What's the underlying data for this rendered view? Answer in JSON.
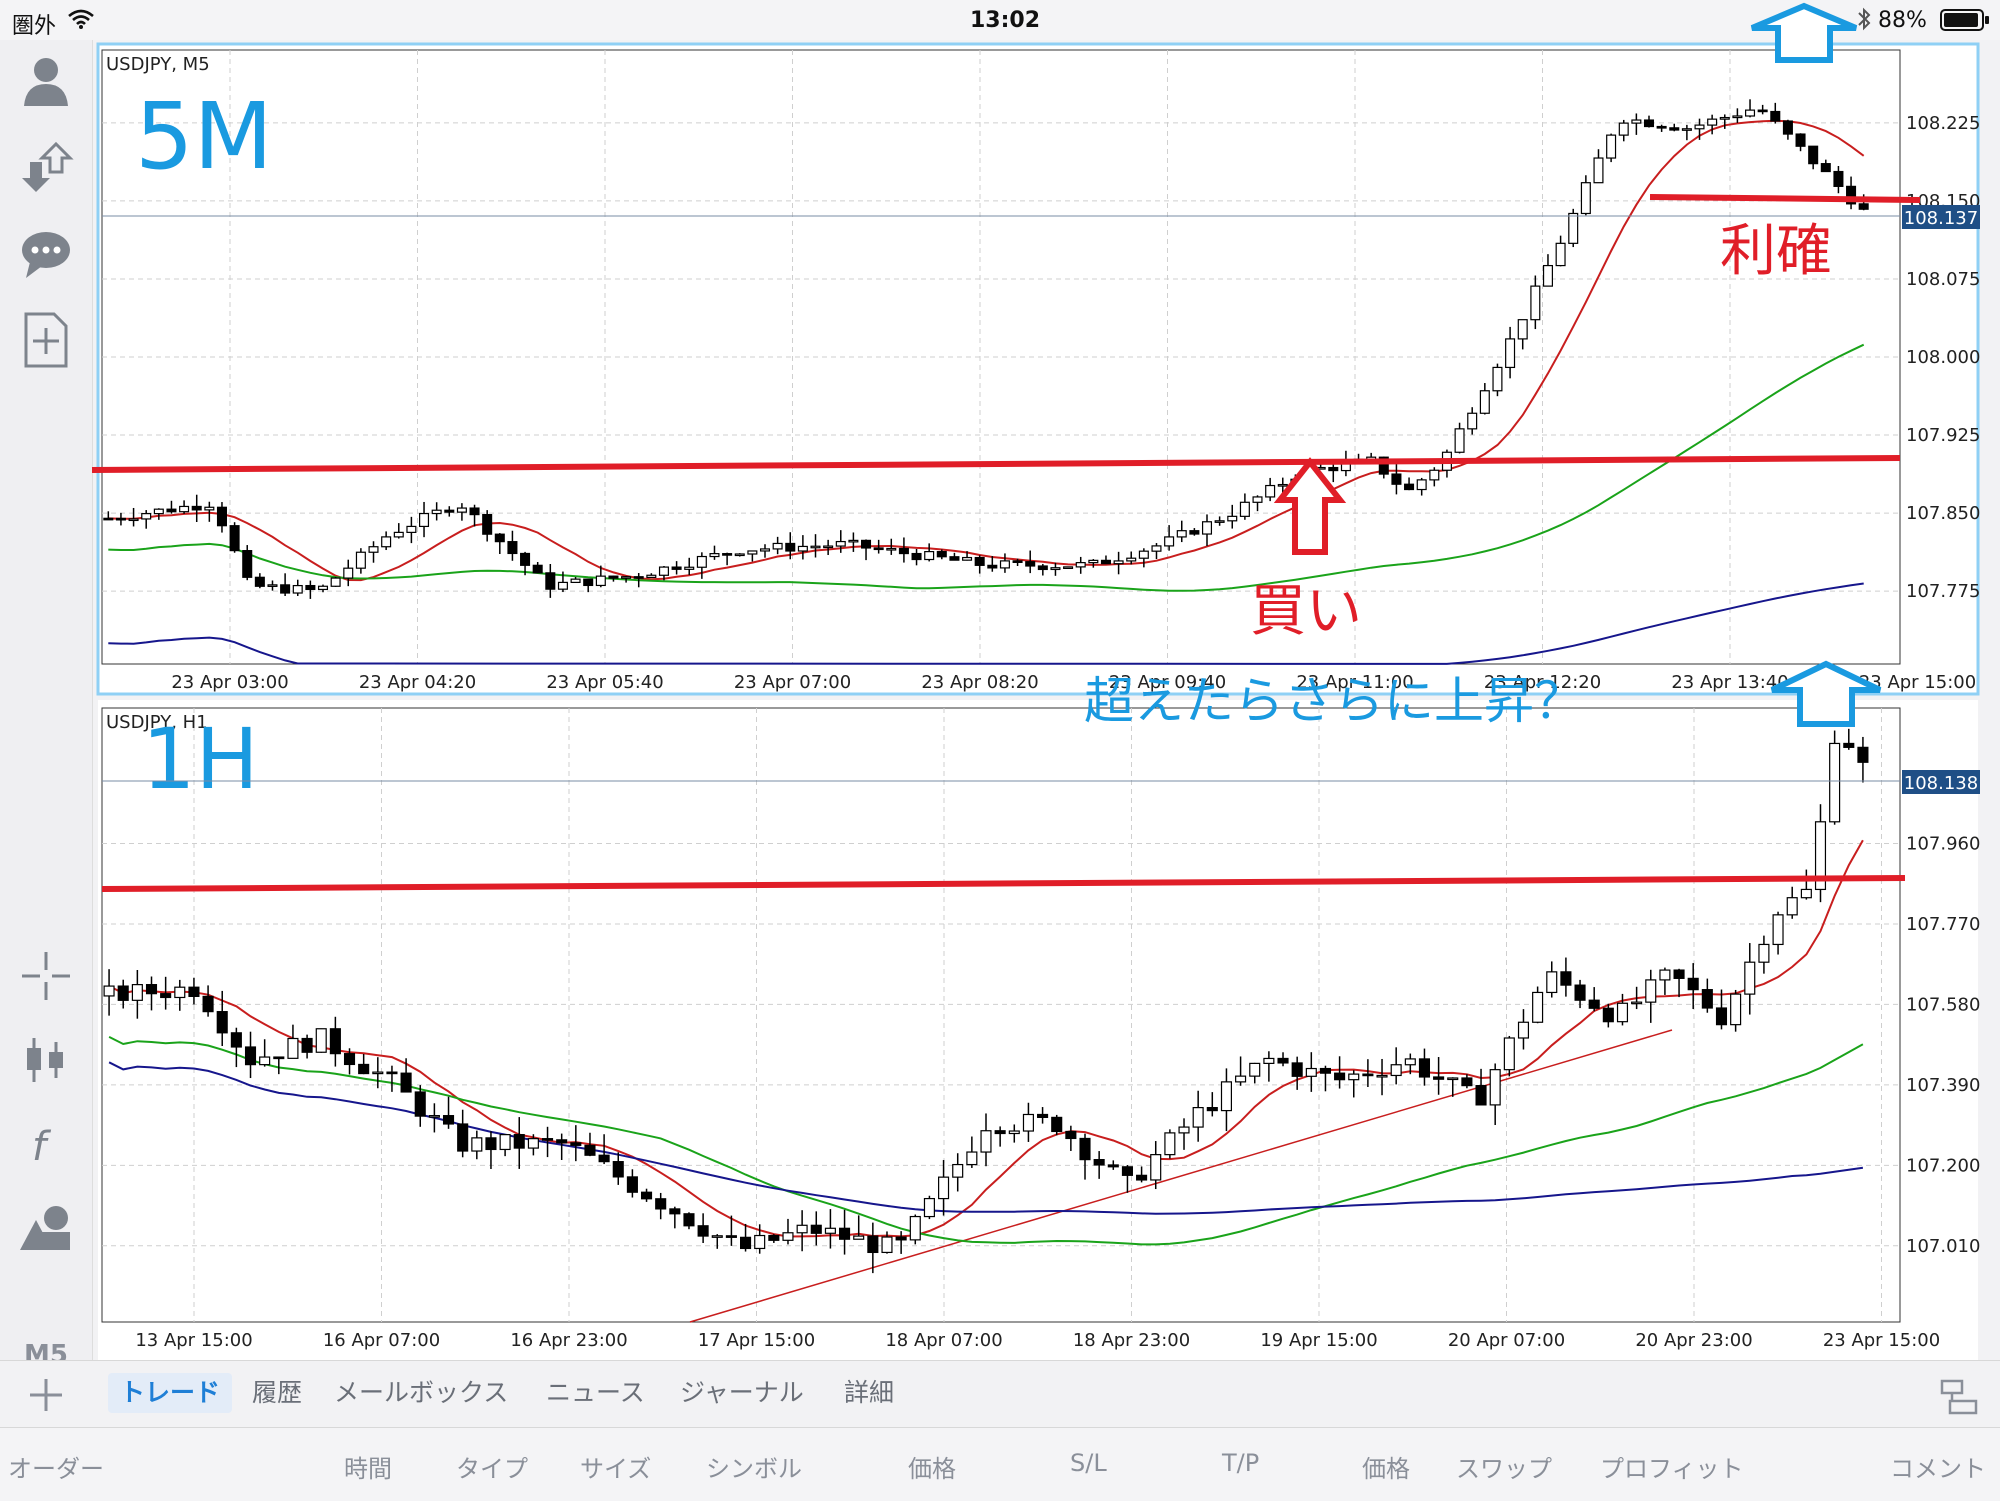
{
  "status_bar": {
    "carrier": "圏外",
    "time": "13:02",
    "battery": "88%",
    "icons": [
      "wifi-icon",
      "bluetooth-icon",
      "battery-icon"
    ]
  },
  "toolbar": {
    "top_icons": [
      "account-icon",
      "trade-arrows-icon",
      "chat-icon",
      "new-order-icon"
    ],
    "bottom_icons": [
      "crosshair-icon",
      "candle-type-icon",
      "indicator-icon",
      "objects-icon"
    ],
    "timeframe": "M5"
  },
  "colors": {
    "bull": "#ffffff",
    "bear": "#000000",
    "ma_red": "#c81e1e",
    "ma_green": "#1aa31a",
    "ma_blue": "#16168c",
    "annotation_red": "#e01e28",
    "annotation_blue": "#1a9ae0",
    "price_tag": "#1f4f86"
  },
  "chart_data": [
    {
      "type": "candlestick",
      "symbol_label": "USDJPY, M5",
      "big_label": "5M",
      "y_ticks": [
        107.775,
        107.85,
        107.925,
        108.0,
        108.075,
        108.15,
        108.225
      ],
      "y_tick_labels": [
        "107.775",
        "107.850",
        "107.925",
        "108.000",
        "108.075",
        "108.150",
        "108.225"
      ],
      "ylim": [
        107.705,
        108.295
      ],
      "x_tick_labels": [
        "23 Apr 03:00",
        "23 Apr 04:20",
        "23 Apr 05:40",
        "23 Apr 07:00",
        "23 Apr 08:20",
        "23 Apr 09:40",
        "23 Apr 11:00",
        "23 Apr 12:20",
        "23 Apr 13:40",
        "23 Apr 15:00"
      ],
      "current_price": "108.137",
      "current_price_value": 108.137,
      "grid": true,
      "series": [
        {
          "indicator": "ma",
          "color": "red",
          "shape": "close-following, rising sharply at right"
        },
        {
          "indicator": "ma",
          "color": "green",
          "shape": "slow rising"
        },
        {
          "indicator": "ma",
          "color": "blue",
          "shape": "slowest rising"
        }
      ],
      "annotations": [
        {
          "text": "利確",
          "color": "red"
        },
        {
          "text": "買い",
          "color": "red"
        }
      ],
      "horizontal_lines": [
        107.895,
        108.15
      ]
    },
    {
      "type": "candlestick",
      "symbol_label": "USDJPY, H1",
      "big_label": "1H",
      "y_ticks": [
        107.01,
        107.2,
        107.39,
        107.58,
        107.77,
        107.96
      ],
      "y_tick_labels": [
        "107.010",
        "107.200",
        "107.390",
        "107.580",
        "107.770",
        "107.960"
      ],
      "ylim": [
        106.83,
        108.28
      ],
      "x_tick_labels": [
        "13 Apr 15:00",
        "16 Apr 07:00",
        "16 Apr 23:00",
        "17 Apr 15:00",
        "18 Apr 07:00",
        "18 Apr 23:00",
        "19 Apr 15:00",
        "20 Apr 07:00",
        "20 Apr 23:00",
        "23 Apr 15:00"
      ],
      "current_price": "108.138",
      "current_price_value": 108.138,
      "grid": true,
      "annotations": [
        {
          "text": "超えたらさらに上昇？",
          "color": "blue"
        }
      ],
      "horizontal_lines": [
        107.9
      ]
    }
  ],
  "bottom_tabs": [
    "トレード",
    "履歴",
    "メールボックス",
    "ニュース",
    "ジャーナル",
    "詳細"
  ],
  "active_tab": "トレード",
  "columns": [
    "オーダー",
    "時間",
    "タイプ",
    "サイズ",
    "シンボル",
    "価格",
    "S/L",
    "T/P",
    "価格",
    "スワップ",
    "プロフィット",
    "コメント"
  ]
}
